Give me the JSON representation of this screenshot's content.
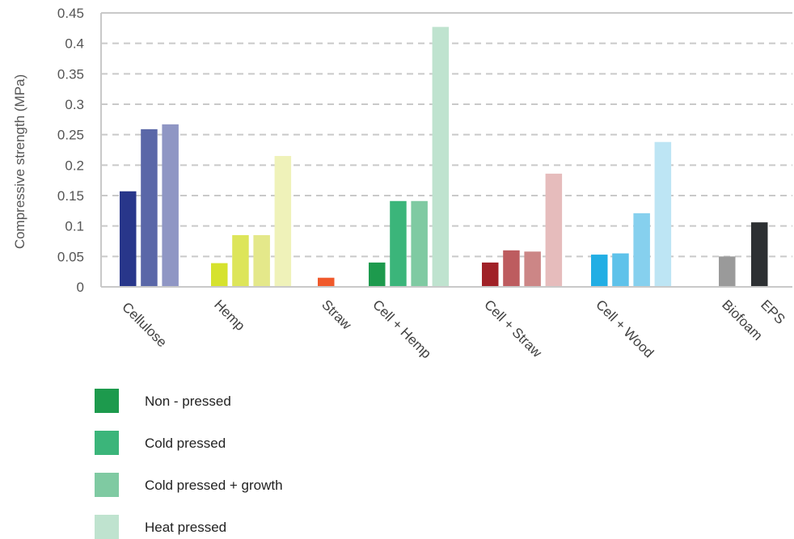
{
  "chart_data": {
    "type": "bar",
    "title": "",
    "xlabel": "",
    "ylabel": "Compressive strength (MPa)",
    "ylim": [
      0,
      0.45
    ],
    "yticks": [
      "0",
      "0.05",
      "0.1",
      "0.15",
      "0.2",
      "0.25",
      "0.3",
      "0.35",
      "0.4",
      "0.45"
    ],
    "grid": true,
    "legend_position": "bottom-left",
    "categories": [
      "Cellulose",
      "Hemp",
      "Straw",
      "Cell + Hemp",
      "Cell + Straw",
      "Cell + Wood",
      "Biofoam",
      "EPS"
    ],
    "groups": [
      {
        "category": "Cellulose",
        "bars": [
          {
            "series": "Non - pressed",
            "value": 0.157,
            "color": "#28368a"
          },
          {
            "series": "Cold pressed",
            "value": 0.259,
            "color": "#5a67a8"
          },
          {
            "series": "Cold pressed + growth",
            "value": 0.267,
            "color": "#8f96c4"
          }
        ]
      },
      {
        "category": "Hemp",
        "bars": [
          {
            "series": "Non - pressed",
            "value": 0.039,
            "color": "#d6e22e"
          },
          {
            "series": "Cold pressed",
            "value": 0.085,
            "color": "#dde55a"
          },
          {
            "series": "Cold pressed + growth",
            "value": 0.085,
            "color": "#e4e88a"
          },
          {
            "series": "Heat pressed",
            "value": 0.215,
            "color": "#eff2b9"
          }
        ]
      },
      {
        "category": "Straw",
        "bars": [
          {
            "series": "Non - pressed",
            "value": 0.015,
            "color": "#f0592b"
          }
        ]
      },
      {
        "category": "Cell + Hemp",
        "bars": [
          {
            "series": "Non - pressed",
            "value": 0.04,
            "color": "#1d9a4d"
          },
          {
            "series": "Cold pressed",
            "value": 0.141,
            "color": "#3bb57a"
          },
          {
            "series": "Cold pressed + growth",
            "value": 0.141,
            "color": "#7fcaa2"
          },
          {
            "series": "Heat pressed",
            "value": 0.427,
            "color": "#bfe3cf"
          }
        ]
      },
      {
        "category": "Cell + Straw",
        "bars": [
          {
            "series": "Non - pressed",
            "value": 0.04,
            "color": "#a02127"
          },
          {
            "series": "Cold pressed",
            "value": 0.06,
            "color": "#bd5c5f"
          },
          {
            "series": "Cold pressed + growth",
            "value": 0.058,
            "color": "#cc8686"
          },
          {
            "series": "Heat pressed",
            "value": 0.186,
            "color": "#e6bcbc"
          }
        ]
      },
      {
        "category": "Cell + Wood",
        "bars": [
          {
            "series": "Non - pressed",
            "value": 0.053,
            "color": "#22aee4"
          },
          {
            "series": "Cold pressed",
            "value": 0.055,
            "color": "#5ec2ea"
          },
          {
            "series": "Cold pressed + growth",
            "value": 0.121,
            "color": "#86d0ee"
          },
          {
            "series": "Heat pressed",
            "value": 0.238,
            "color": "#bde5f4"
          }
        ]
      },
      {
        "category": "Biofoam",
        "bars": [
          {
            "series": "Non - pressed",
            "value": 0.05,
            "color": "#9a9a9a"
          }
        ]
      },
      {
        "category": "EPS",
        "bars": [
          {
            "series": "Non - pressed",
            "value": 0.106,
            "color": "#2d3033"
          }
        ]
      }
    ],
    "legend": [
      {
        "label": "Non - pressed",
        "color": "#1d9a4d"
      },
      {
        "label": "Cold pressed",
        "color": "#3bb57a"
      },
      {
        "label": "Cold pressed + growth",
        "color": "#7fcaa2"
      },
      {
        "label": "Heat pressed",
        "color": "#bfe3cf"
      }
    ]
  }
}
